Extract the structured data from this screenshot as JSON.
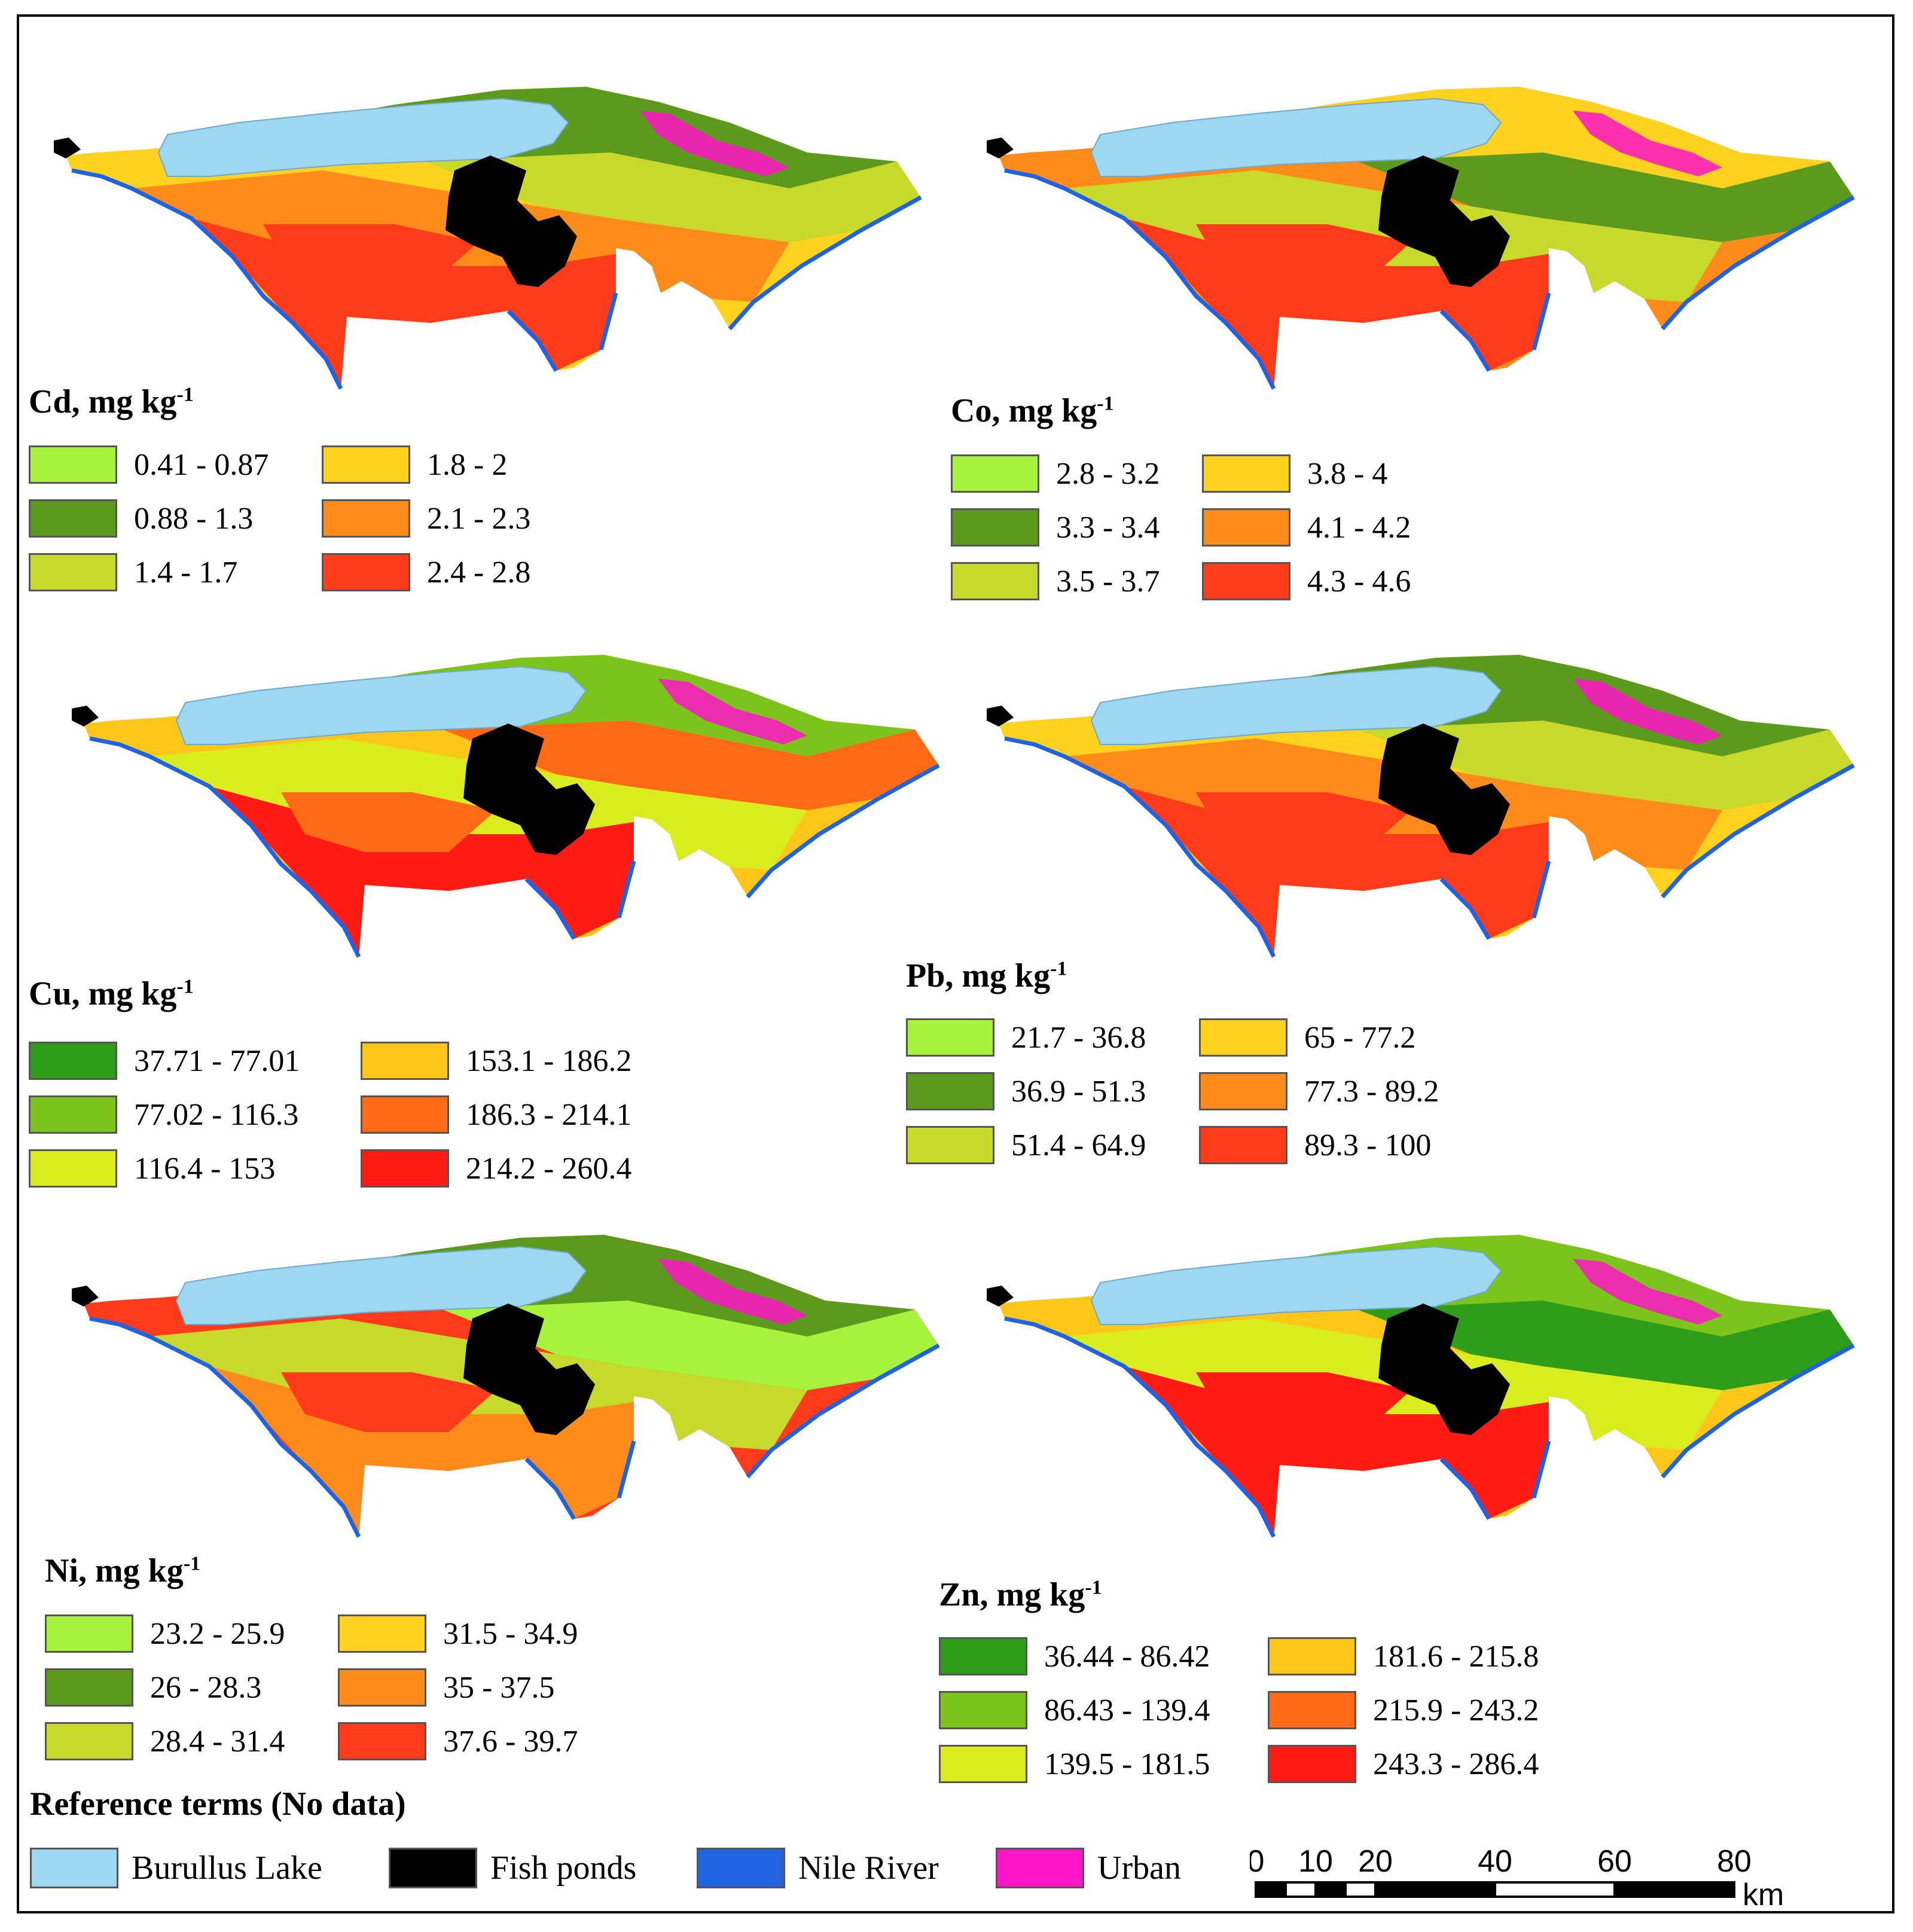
{
  "maps": [
    {
      "id": "cd",
      "title_symbol": "Cd, mg",
      "title_unit": "kg",
      "title_exp": "-1",
      "legend": [
        {
          "label": "0.41 - 0.87",
          "color": "#a6f23c"
        },
        {
          "label": "0.88 - 1.3",
          "color": "#5c9a1e"
        },
        {
          "label": "1.4 - 1.7",
          "color": "#c7d92a"
        },
        {
          "label": "1.8 - 2",
          "color": "#ffd21f"
        },
        {
          "label": "2.1 - 2.3",
          "color": "#ff8c1a"
        },
        {
          "label": "2.4 - 2.8",
          "color": "#ff3b1a"
        }
      ]
    },
    {
      "id": "co",
      "title_symbol": "Co, mg",
      "title_unit": "kg",
      "title_exp": "-1",
      "legend": [
        {
          "label": "2.8 - 3.2",
          "color": "#a6f23c"
        },
        {
          "label": "3.3 - 3.4",
          "color": "#5c9a1e"
        },
        {
          "label": "3.5 - 3.7",
          "color": "#c7d92a"
        },
        {
          "label": "3.8 - 4",
          "color": "#ffd21f"
        },
        {
          "label": "4.1 - 4.2",
          "color": "#ff8c1a"
        },
        {
          "label": "4.3 - 4.6",
          "color": "#ff3b1a"
        }
      ]
    },
    {
      "id": "cu",
      "title_symbol": "Cu, mg",
      "title_unit": "kg",
      "title_exp": "-1",
      "legend": [
        {
          "label": "37.71 - 77.01",
          "color": "#2e9e1a"
        },
        {
          "label": "77.02 - 116.3",
          "color": "#7cc41c"
        },
        {
          "label": "116.4 - 153",
          "color": "#d9ec1e"
        },
        {
          "label": "153.1 - 186.2",
          "color": "#ffc61a"
        },
        {
          "label": "186.3 - 214.1",
          "color": "#ff6a14"
        },
        {
          "label": "214.2 - 260.4",
          "color": "#ff1a14"
        }
      ]
    },
    {
      "id": "pb",
      "title_symbol": "Pb, mg",
      "title_unit": "kg",
      "title_exp": "-1",
      "legend": [
        {
          "label": "21.7 - 36.8",
          "color": "#a6f23c"
        },
        {
          "label": "36.9 - 51.3",
          "color": "#5c9a1e"
        },
        {
          "label": "51.4 - 64.9",
          "color": "#c7d92a"
        },
        {
          "label": "65 - 77.2",
          "color": "#ffd21f"
        },
        {
          "label": "77.3 - 89.2",
          "color": "#ff8c1a"
        },
        {
          "label": "89.3 - 100",
          "color": "#ff3b1a"
        }
      ]
    },
    {
      "id": "ni",
      "title_symbol": "Ni, mg",
      "title_unit": "kg",
      "title_exp": "-1",
      "legend": [
        {
          "label": "23.2 - 25.9",
          "color": "#a6f23c"
        },
        {
          "label": "26 - 28.3",
          "color": "#5c9a1e"
        },
        {
          "label": "28.4 - 31.4",
          "color": "#c7d92a"
        },
        {
          "label": "31.5 - 34.9",
          "color": "#ffd21f"
        },
        {
          "label": "35 - 37.5",
          "color": "#ff8c1a"
        },
        {
          "label": "37.6 - 39.7",
          "color": "#ff3b1a"
        }
      ]
    },
    {
      "id": "zn",
      "title_symbol": "Zn, mg",
      "title_unit": "kg",
      "title_exp": "-1",
      "legend": [
        {
          "label": "36.44 - 86.42",
          "color": "#2e9e1a"
        },
        {
          "label": "86.43 - 139.4",
          "color": "#7cc41c"
        },
        {
          "label": "139.5 - 181.5",
          "color": "#d9ec1e"
        },
        {
          "label": "181.6 - 215.8",
          "color": "#ffc61a"
        },
        {
          "label": "215.9 - 243.2",
          "color": "#ff6a14"
        },
        {
          "label": "243.3 - 286.4",
          "color": "#ff1a14"
        }
      ]
    }
  ],
  "reference": {
    "title": "Reference terms (No data)",
    "items": [
      {
        "label": "Burullus Lake",
        "color": "#9ed8f0"
      },
      {
        "label": "Fish ponds",
        "color": "#000000"
      },
      {
        "label": "Nile River",
        "color": "#1f63e0"
      },
      {
        "label": "Urban",
        "color": "#ff14c8"
      }
    ]
  },
  "scale": {
    "ticks": [
      "0",
      "10",
      "20",
      "40",
      "60",
      "80"
    ],
    "tick_values": [
      0,
      10,
      20,
      40,
      60,
      80
    ],
    "unit": "km"
  }
}
